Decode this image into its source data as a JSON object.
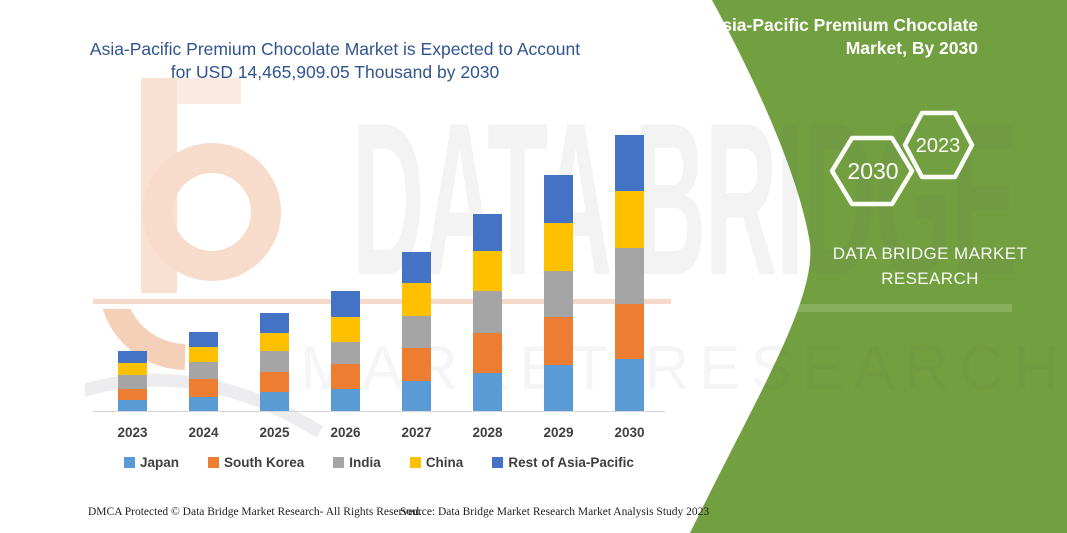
{
  "main_title": {
    "line1": "Asia-Pacific Premium Chocolate Market is Expected to Account",
    "line2": "for USD 14,465,909.05 Thousand by 2030",
    "color": "#31548F"
  },
  "chart_data": {
    "type": "bar",
    "stacked": true,
    "title": "Asia-Pacific Premium Chocolate Market is Expected to Account for USD 14,465,909.05 Thousand by 2030",
    "unit": "USD Thousand",
    "highlight_total_2030": "14,465,909.05",
    "value_axis_visible": false,
    "grid": false,
    "legend_position": "bottom",
    "values_are_estimates": true,
    "categories": [
      "2023",
      "2024",
      "2025",
      "2026",
      "2027",
      "2028",
      "2029",
      "2030"
    ],
    "series": [
      {
        "name": "Japan",
        "color": "#5B9BD5",
        "values": [
          615000,
          790000,
          1050000,
          1225000,
          1645000,
          2050000,
          2455000,
          2770000
        ]
      },
      {
        "name": "South Korea",
        "color": "#ED7D31",
        "values": [
          610000,
          910000,
          1050000,
          1260000,
          1720000,
          2100000,
          2500000,
          2890000
        ]
      },
      {
        "name": "India",
        "color": "#A5A5A5",
        "values": [
          705000,
          915000,
          1090000,
          1195000,
          1630000,
          2155000,
          2420000,
          2920000
        ]
      },
      {
        "name": "China",
        "color": "#FFC000",
        "values": [
          645000,
          805000,
          960000,
          1300000,
          1750000,
          2085000,
          2490000,
          2940000
        ]
      },
      {
        "name": "Rest of Asia-Pacific",
        "color": "#4472C4",
        "values": [
          615000,
          735000,
          1015000,
          1315000,
          1615000,
          1975000,
          2500000,
          2945909.05
        ]
      }
    ],
    "totals_estimated": [
      3190000,
      4155000,
      5165000,
      6295000,
      8360000,
      10365000,
      12365000,
      14465909.05
    ]
  },
  "side_panel": {
    "bg_color": "#72A040",
    "title_line1": "Asia-Pacific Premium Chocolate",
    "title_line2": "Market, By 2030",
    "hexagon_left": "2030",
    "hexagon_right": "2023",
    "brand_line1": "DATA BRIDGE MARKET",
    "brand_line2": "RESEARCH"
  },
  "watermark": {
    "line1": "DATA BRIDGE",
    "line2": "MARKET RESEARCH"
  },
  "footer": {
    "left": "DMCA Protected © Data Bridge Market Research-  All Rights Reserved.",
    "right": "Source: Data Bridge Market Research  Market Analysis Study 2023"
  }
}
